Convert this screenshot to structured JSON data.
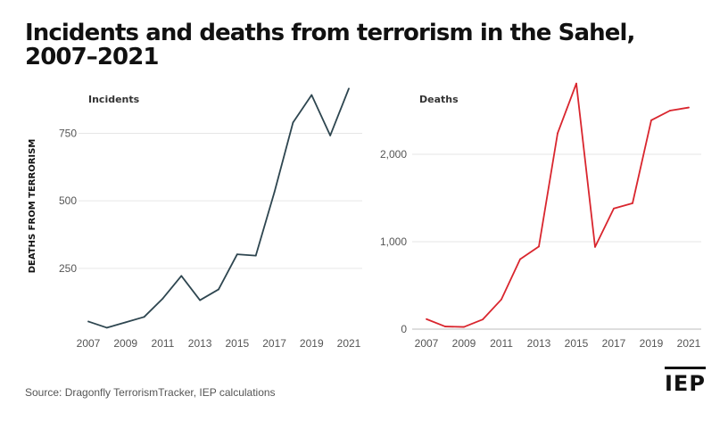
{
  "title": "Incidents and deaths from terrorism in the Sahel, 2007–2021",
  "source": "Source: Dragonfly TerrorismTracker, IEP calculations",
  "logo_text": "IEP",
  "colors": {
    "incidents": "#2e4650",
    "deaths": "#d9262e",
    "grid": "#e6e6e6",
    "axis": "#bdbdbd"
  },
  "chart_data": [
    {
      "type": "line",
      "title": "Incidents",
      "ylabel": "DEATHS FROM TERRORISM",
      "xlabel": "",
      "x": [
        2007,
        2008,
        2009,
        2010,
        2011,
        2012,
        2013,
        2014,
        2015,
        2016,
        2017,
        2018,
        2019,
        2020,
        2021
      ],
      "xticks": [
        "2007",
        "2009",
        "2011",
        "2013",
        "2015",
        "2017",
        "2019",
        "2021"
      ],
      "yticks": [
        250,
        500,
        750
      ],
      "ytick_labels": [
        "250",
        "500",
        "750"
      ],
      "ylim": [
        0,
        950
      ],
      "grid": true,
      "series": [
        {
          "values": [
            53,
            30,
            50,
            70,
            138,
            222,
            132,
            172,
            302,
            297,
            532,
            790,
            892,
            742,
            916
          ]
        }
      ]
    },
    {
      "type": "line",
      "title": "Deaths",
      "ylabel": "",
      "xlabel": "",
      "x": [
        2007,
        2008,
        2009,
        2010,
        2011,
        2012,
        2013,
        2014,
        2015,
        2016,
        2017,
        2018,
        2019,
        2020,
        2021
      ],
      "xticks": [
        "2007",
        "2009",
        "2011",
        "2013",
        "2015",
        "2017",
        "2019",
        "2021"
      ],
      "yticks": [
        0,
        1000,
        2000
      ],
      "ytick_labels": [
        "0",
        "1,000",
        "2,000"
      ],
      "ylim": [
        0,
        2850
      ],
      "grid": true,
      "series": [
        {
          "values": [
            115,
            30,
            25,
            110,
            340,
            800,
            945,
            2240,
            2810,
            940,
            1380,
            1440,
            2390,
            2500,
            2535
          ]
        }
      ]
    }
  ]
}
